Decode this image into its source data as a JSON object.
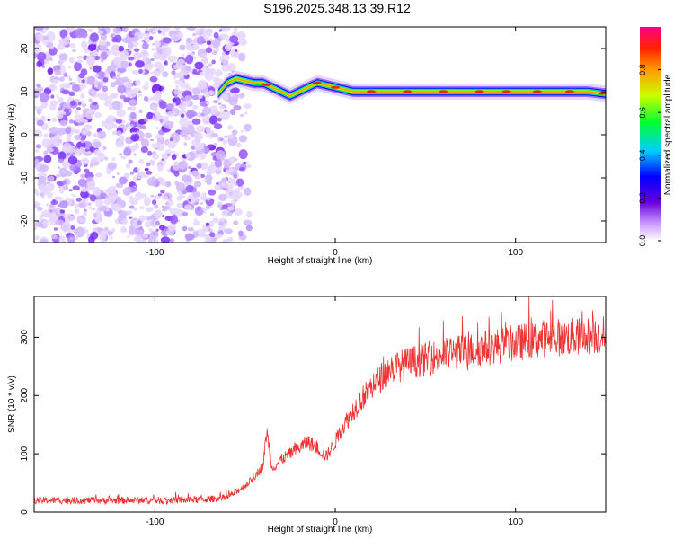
{
  "title": "S196.2025.348.13.39.R12",
  "chart_data": [
    {
      "type": "heatmap",
      "name": "spectrogram",
      "xlabel": "Height of straight line (km)",
      "ylabel": "Frequency (Hz)",
      "xlim": [
        -167,
        150
      ],
      "ylim": [
        -25,
        25
      ],
      "xticks": [
        -100,
        0,
        100
      ],
      "yticks": [
        -20,
        -10,
        0,
        10,
        20
      ],
      "noise_region_x": [
        -167,
        -55
      ],
      "ridge": {
        "x": [
          -65,
          -60,
          -55,
          -50,
          -45,
          -40,
          -35,
          -30,
          -25,
          -20,
          -15,
          -10,
          -5,
          0,
          10,
          20,
          40,
          60,
          80,
          100,
          120,
          140,
          150
        ],
        "freq": [
          9.5,
          12,
          13,
          12.5,
          12,
          12,
          11,
          10,
          9,
          10,
          11,
          12,
          11.5,
          11,
          10,
          10,
          10,
          10,
          10,
          10,
          10,
          10,
          9.5
        ]
      },
      "colorbar": {
        "label": "Normalized spectral amplitude",
        "range": [
          0,
          1
        ],
        "ticks": [
          "0.0",
          "0.2",
          "0.4",
          "0.6",
          "0.8"
        ]
      }
    },
    {
      "type": "line",
      "name": "snr",
      "xlabel": "Height of straight line (km)",
      "ylabel": "SNR (10 * v/v)",
      "xlim": [
        -167,
        150
      ],
      "ylim": [
        0,
        370
      ],
      "xticks": [
        -100,
        0,
        100
      ],
      "yticks": [
        0,
        100,
        200,
        300
      ],
      "color": "#ee3333",
      "series": [
        {
          "name": "SNR",
          "x": [
            -167,
            -150,
            -130,
            -110,
            -90,
            -70,
            -60,
            -55,
            -50,
            -45,
            -40,
            -38,
            -35,
            -30,
            -25,
            -20,
            -15,
            -10,
            -5,
            0,
            5,
            10,
            15,
            20,
            25,
            30,
            40,
            50,
            60,
            70,
            80,
            90,
            100,
            110,
            120,
            130,
            140,
            150
          ],
          "y": [
            20,
            20,
            20,
            20,
            20,
            22,
            25,
            35,
            45,
            60,
            80,
            140,
            75,
            90,
            100,
            110,
            120,
            110,
            95,
            120,
            150,
            175,
            195,
            215,
            230,
            245,
            255,
            262,
            270,
            275,
            280,
            285,
            290,
            295,
            300,
            300,
            302,
            305
          ]
        }
      ]
    }
  ]
}
